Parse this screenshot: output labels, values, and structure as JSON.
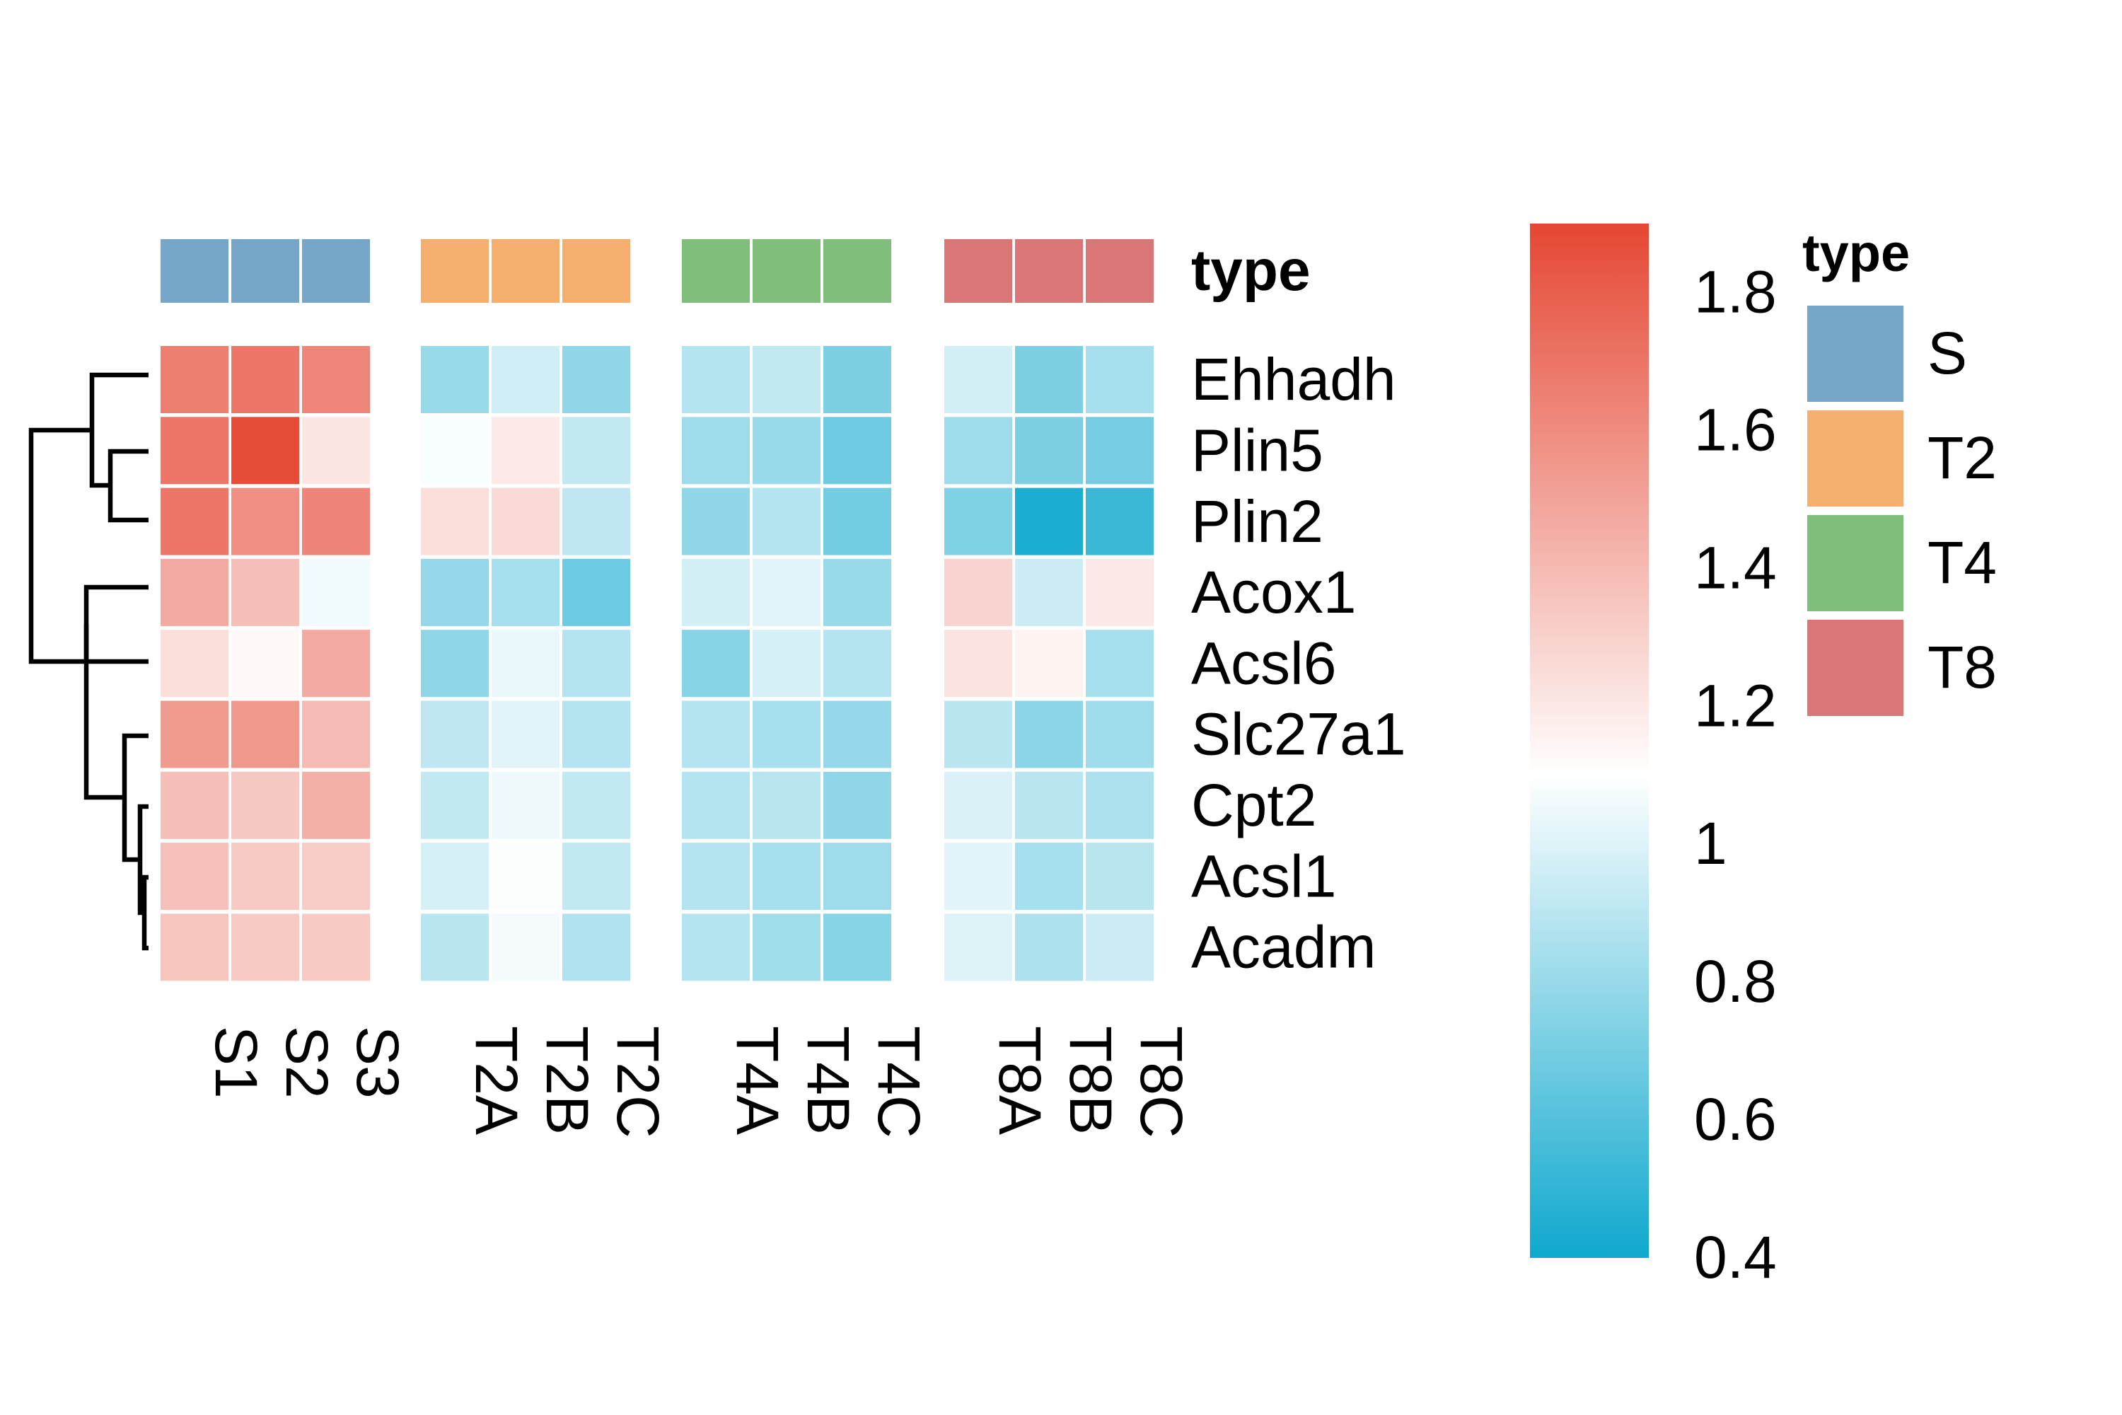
{
  "chart_data": {
    "type": "heatmap",
    "rows": [
      "Ehhadh",
      "Plin5",
      "Plin2",
      "Acox1",
      "Acsl6",
      "Slc27a1",
      "Cpt2",
      "Acsl1",
      "Acadm"
    ],
    "groups": [
      {
        "name": "S",
        "color": "#77A7C8",
        "columns": [
          "S1",
          "S2",
          "S3"
        ]
      },
      {
        "name": "T2",
        "color": "#F4AE6D",
        "columns": [
          "T2A",
          "T2B",
          "T2C"
        ]
      },
      {
        "name": "T4",
        "color": "#7FBE7B",
        "columns": [
          "T4A",
          "T4B",
          "T4C"
        ]
      },
      {
        "name": "T8",
        "color": "#DB7677",
        "columns": [
          "T8A",
          "T8B",
          "T8C"
        ]
      }
    ],
    "values": [
      [
        1.66,
        1.69,
        1.62,
        0.8,
        0.96,
        0.78,
        0.88,
        0.92,
        0.72,
        0.97,
        0.72,
        0.84
      ],
      [
        1.69,
        1.88,
        1.21,
        1.08,
        1.19,
        0.92,
        0.82,
        0.8,
        0.68,
        0.82,
        0.72,
        0.7
      ],
      [
        1.69,
        1.59,
        1.63,
        1.24,
        1.26,
        0.91,
        0.78,
        0.88,
        0.69,
        0.73,
        0.44,
        0.53
      ],
      [
        1.47,
        1.38,
        1.06,
        0.79,
        0.84,
        0.67,
        0.97,
        1.01,
        0.8,
        1.29,
        0.95,
        1.2
      ],
      [
        1.24,
        1.13,
        1.47,
        0.77,
        1.04,
        0.88,
        0.75,
        0.98,
        0.88,
        1.22,
        1.15,
        0.84
      ],
      [
        1.54,
        1.55,
        1.4,
        0.91,
        1.01,
        0.88,
        0.88,
        0.84,
        0.79,
        0.9,
        0.76,
        0.82
      ],
      [
        1.38,
        1.34,
        1.45,
        0.92,
        1.05,
        0.92,
        0.88,
        0.89,
        0.78,
        0.99,
        0.89,
        0.86
      ],
      [
        1.37,
        1.33,
        1.32,
        0.98,
        1.09,
        0.92,
        0.88,
        0.84,
        0.82,
        1.02,
        0.84,
        0.89
      ],
      [
        1.35,
        1.33,
        1.33,
        0.9,
        1.07,
        0.87,
        0.88,
        0.83,
        0.75,
        1.0,
        0.86,
        0.95
      ]
    ],
    "annotation_label": "type",
    "color_scale": {
      "min": 0.4,
      "mid": 1.1,
      "max": 1.9,
      "low_color": "#0FA8CE",
      "mid_color": "#FFFFFF",
      "high_color": "#E54733",
      "ticks": [
        "1.8",
        "1.6",
        "1.4",
        "1.2",
        "1",
        "0.8",
        "0.6",
        "0.4"
      ],
      "tick_values": [
        1.8,
        1.6,
        1.4,
        1.2,
        1.0,
        0.8,
        0.6,
        0.4
      ]
    },
    "legend": {
      "title": "type",
      "entries": [
        {
          "label": "S",
          "color": "#77A7C8"
        },
        {
          "label": "T2",
          "color": "#F4AE6D"
        },
        {
          "label": "T4",
          "color": "#7FBE7B"
        },
        {
          "label": "T8",
          "color": "#DB7677"
        }
      ]
    },
    "row_dendrogram": true
  }
}
